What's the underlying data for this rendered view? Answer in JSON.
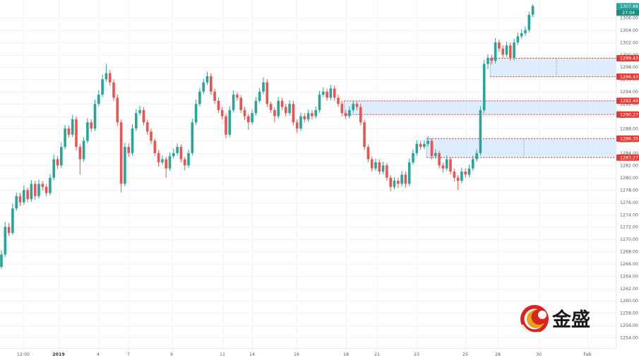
{
  "chart_data": {
    "type": "candlestick",
    "ylim": [
      1252.3,
      1308.9
    ],
    "y_ticks": [
      "1254.00",
      "1256.00",
      "1258.00",
      "1260.00",
      "1262.00",
      "1264.00",
      "1266.00",
      "1268.00",
      "1270.00",
      "1272.00",
      "1274.00",
      "1276.00",
      "1278.00",
      "1280.00",
      "1282.00",
      "1284.00",
      "1286.00",
      "1288.00",
      "1290.00",
      "1292.00",
      "1294.00",
      "1296.00",
      "1298.00",
      "1300.00",
      "1302.00",
      "1304.00",
      "1306.00"
    ],
    "x_ticks": [
      "12:00",
      "2019",
      "4",
      "7",
      "9",
      "11",
      "14",
      "16",
      "18",
      "21",
      "23",
      "25",
      "28",
      "30",
      "Feb"
    ],
    "candles": [
      [
        1265.5,
        1268.2,
        1265.2,
        1267.5
      ],
      [
        1267.5,
        1272.8,
        1267.1,
        1272.0
      ],
      [
        1272.0,
        1272.6,
        1270.5,
        1271.0
      ],
      [
        1271.0,
        1275.8,
        1270.7,
        1275.0
      ],
      [
        1275.0,
        1277.6,
        1274.6,
        1277.0
      ],
      [
        1277.0,
        1277.5,
        1275.4,
        1276.0
      ],
      [
        1276.0,
        1278.7,
        1275.6,
        1278.0
      ],
      [
        1278.0,
        1278.4,
        1276.0,
        1276.5
      ],
      [
        1276.5,
        1279.6,
        1276.1,
        1279.0
      ],
      [
        1279.0,
        1279.5,
        1276.4,
        1277.0
      ],
      [
        1277.0,
        1279.7,
        1276.6,
        1279.0
      ],
      [
        1279.0,
        1279.4,
        1277.9,
        1278.5
      ],
      [
        1278.5,
        1279.0,
        1277.0,
        1277.5
      ],
      [
        1277.5,
        1280.6,
        1277.1,
        1280.0
      ],
      [
        1280.0,
        1283.8,
        1279.6,
        1283.0
      ],
      [
        1283.0,
        1283.5,
        1281.4,
        1282.0
      ],
      [
        1282.0,
        1285.7,
        1281.6,
        1285.0
      ],
      [
        1285.0,
        1288.6,
        1284.6,
        1288.0
      ],
      [
        1288.0,
        1288.5,
        1286.5,
        1287.0
      ],
      [
        1287.0,
        1290.2,
        1286.6,
        1289.5
      ],
      [
        1289.5,
        1290.0,
        1284.4,
        1285.0
      ],
      [
        1285.0,
        1285.5,
        1280.5,
        1283.0
      ],
      [
        1283.0,
        1286.6,
        1282.6,
        1286.0
      ],
      [
        1286.0,
        1289.7,
        1285.6,
        1289.0
      ],
      [
        1289.0,
        1289.5,
        1287.4,
        1288.0
      ],
      [
        1288.0,
        1292.7,
        1287.6,
        1292.0
      ],
      [
        1292.0,
        1294.2,
        1291.6,
        1293.5
      ],
      [
        1293.5,
        1296.8,
        1293.1,
        1296.0
      ],
      [
        1296.0,
        1298.5,
        1295.6,
        1297.0
      ],
      [
        1297.0,
        1297.5,
        1295.0,
        1295.5
      ],
      [
        1295.5,
        1296.0,
        1292.5,
        1293.0
      ],
      [
        1293.0,
        1293.5,
        1288.4,
        1289.0
      ],
      [
        1289.0,
        1289.5,
        1277.6,
        1279.0
      ],
      [
        1279.0,
        1285.7,
        1278.6,
        1285.0
      ],
      [
        1285.0,
        1285.6,
        1283.4,
        1284.0
      ],
      [
        1284.0,
        1288.7,
        1283.6,
        1288.0
      ],
      [
        1288.0,
        1291.2,
        1287.6,
        1290.5
      ],
      [
        1290.5,
        1291.7,
        1290.1,
        1291.0
      ],
      [
        1291.0,
        1291.5,
        1288.5,
        1289.0
      ],
      [
        1289.0,
        1289.4,
        1287.0,
        1287.5
      ],
      [
        1287.5,
        1288.0,
        1285.5,
        1286.0
      ],
      [
        1286.0,
        1286.4,
        1283.5,
        1284.0
      ],
      [
        1284.0,
        1284.5,
        1281.8,
        1282.5
      ],
      [
        1282.5,
        1283.6,
        1282.1,
        1283.0
      ],
      [
        1283.0,
        1283.4,
        1280.0,
        1281.5
      ],
      [
        1281.5,
        1284.1,
        1281.1,
        1283.5
      ],
      [
        1283.5,
        1284.7,
        1283.1,
        1284.0
      ],
      [
        1284.0,
        1285.6,
        1283.6,
        1285.0
      ],
      [
        1285.0,
        1285.4,
        1282.5,
        1283.0
      ],
      [
        1283.0,
        1283.4,
        1281.2,
        1282.0
      ],
      [
        1282.0,
        1284.6,
        1281.6,
        1284.0
      ],
      [
        1284.0,
        1289.6,
        1283.6,
        1289.0
      ],
      [
        1289.0,
        1292.7,
        1288.6,
        1292.0
      ],
      [
        1292.0,
        1294.6,
        1291.6,
        1294.0
      ],
      [
        1294.0,
        1296.1,
        1293.6,
        1295.5
      ],
      [
        1295.5,
        1297.2,
        1295.1,
        1296.5
      ],
      [
        1296.5,
        1297.0,
        1293.5,
        1294.0
      ],
      [
        1294.0,
        1294.5,
        1292.0,
        1292.5
      ],
      [
        1292.5,
        1293.0,
        1290.5,
        1291.0
      ],
      [
        1291.0,
        1291.5,
        1289.5,
        1290.0
      ],
      [
        1290.0,
        1290.4,
        1286.4,
        1287.0
      ],
      [
        1287.0,
        1291.6,
        1286.6,
        1291.0
      ],
      [
        1291.0,
        1294.2,
        1290.6,
        1293.5
      ],
      [
        1293.5,
        1293.9,
        1292.5,
        1293.0
      ],
      [
        1293.0,
        1293.4,
        1290.5,
        1291.0
      ],
      [
        1291.0,
        1291.5,
        1289.4,
        1290.0
      ],
      [
        1290.0,
        1290.4,
        1287.8,
        1289.0
      ],
      [
        1289.0,
        1291.1,
        1288.6,
        1290.5
      ],
      [
        1290.5,
        1293.1,
        1290.1,
        1292.5
      ],
      [
        1292.5,
        1294.6,
        1292.1,
        1294.0
      ],
      [
        1294.0,
        1296.3,
        1293.6,
        1295.5
      ],
      [
        1295.5,
        1296.0,
        1291.5,
        1292.0
      ],
      [
        1292.0,
        1292.4,
        1290.5,
        1291.0
      ],
      [
        1291.0,
        1291.4,
        1289.0,
        1290.0
      ],
      [
        1290.0,
        1293.1,
        1289.6,
        1292.5
      ],
      [
        1292.5,
        1293.0,
        1291.0,
        1291.5
      ],
      [
        1291.5,
        1292.0,
        1290.0,
        1290.5
      ],
      [
        1290.5,
        1292.6,
        1290.1,
        1292.0
      ],
      [
        1292.0,
        1292.5,
        1288.5,
        1289.0
      ],
      [
        1289.0,
        1289.5,
        1287.3,
        1288.0
      ],
      [
        1288.0,
        1290.6,
        1287.6,
        1290.0
      ],
      [
        1290.0,
        1290.5,
        1289.0,
        1289.5
      ],
      [
        1289.5,
        1291.1,
        1289.1,
        1290.5
      ],
      [
        1290.5,
        1291.0,
        1289.5,
        1290.0
      ],
      [
        1290.0,
        1291.6,
        1289.6,
        1291.0
      ],
      [
        1291.0,
        1294.1,
        1290.6,
        1293.5
      ],
      [
        1293.5,
        1294.7,
        1293.1,
        1294.0
      ],
      [
        1294.0,
        1294.5,
        1292.5,
        1293.0
      ],
      [
        1293.0,
        1295.1,
        1292.6,
        1294.5
      ],
      [
        1294.5,
        1295.0,
        1292.5,
        1293.0
      ],
      [
        1293.0,
        1293.5,
        1291.5,
        1292.0
      ],
      [
        1292.0,
        1292.5,
        1290.0,
        1290.5
      ],
      [
        1290.5,
        1291.0,
        1289.5,
        1290.0
      ],
      [
        1290.0,
        1291.6,
        1289.6,
        1291.0
      ],
      [
        1291.0,
        1292.6,
        1290.6,
        1292.0
      ],
      [
        1292.0,
        1292.4,
        1291.0,
        1291.5
      ],
      [
        1291.5,
        1292.0,
        1288.5,
        1289.0
      ],
      [
        1289.0,
        1289.4,
        1284.5,
        1285.0
      ],
      [
        1285.0,
        1285.4,
        1282.5,
        1283.0
      ],
      [
        1283.0,
        1283.4,
        1281.0,
        1281.5
      ],
      [
        1281.5,
        1283.1,
        1281.1,
        1282.5
      ],
      [
        1282.5,
        1283.0,
        1280.5,
        1281.0
      ],
      [
        1281.0,
        1282.6,
        1280.6,
        1282.0
      ],
      [
        1282.0,
        1282.4,
        1279.5,
        1280.0
      ],
      [
        1280.0,
        1280.4,
        1277.8,
        1278.5
      ],
      [
        1278.5,
        1280.1,
        1278.1,
        1279.5
      ],
      [
        1279.5,
        1280.0,
        1278.3,
        1279.0
      ],
      [
        1279.0,
        1281.1,
        1278.6,
        1280.5
      ],
      [
        1280.5,
        1281.0,
        1278.4,
        1279.0
      ],
      [
        1279.0,
        1283.1,
        1278.6,
        1282.5
      ],
      [
        1282.5,
        1284.6,
        1282.1,
        1284.0
      ],
      [
        1284.0,
        1286.1,
        1283.6,
        1285.5
      ],
      [
        1285.5,
        1286.0,
        1284.5,
        1285.0
      ],
      [
        1285.0,
        1286.1,
        1284.6,
        1285.5
      ],
      [
        1285.5,
        1286.7,
        1285.1,
        1286.0
      ],
      [
        1286.0,
        1286.4,
        1283.0,
        1283.5
      ],
      [
        1283.5,
        1284.6,
        1283.1,
        1284.0
      ],
      [
        1284.0,
        1284.4,
        1281.5,
        1282.0
      ],
      [
        1282.0,
        1282.4,
        1280.8,
        1281.5
      ],
      [
        1281.5,
        1283.6,
        1281.1,
        1283.0
      ],
      [
        1283.0,
        1283.4,
        1280.5,
        1281.0
      ],
      [
        1281.0,
        1281.5,
        1279.4,
        1280.0
      ],
      [
        1280.0,
        1280.4,
        1278.0,
        1279.5
      ],
      [
        1279.5,
        1281.6,
        1279.1,
        1281.0
      ],
      [
        1281.0,
        1281.5,
        1280.0,
        1280.5
      ],
      [
        1280.5,
        1282.1,
        1280.1,
        1281.5
      ],
      [
        1281.5,
        1283.6,
        1281.1,
        1283.0
      ],
      [
        1283.0,
        1284.6,
        1282.6,
        1284.0
      ],
      [
        1284.0,
        1291.6,
        1283.6,
        1291.0
      ],
      [
        1291.0,
        1299.2,
        1290.6,
        1298.5
      ],
      [
        1298.5,
        1300.1,
        1297.6,
        1299.5
      ],
      [
        1299.5,
        1300.0,
        1298.4,
        1299.0
      ],
      [
        1299.0,
        1302.7,
        1298.6,
        1302.0
      ],
      [
        1302.0,
        1302.5,
        1300.5,
        1301.0
      ],
      [
        1301.0,
        1301.5,
        1299.5,
        1300.0
      ],
      [
        1300.0,
        1302.1,
        1299.6,
        1301.5
      ],
      [
        1301.5,
        1302.0,
        1299.0,
        1299.5
      ],
      [
        1299.5,
        1302.6,
        1299.1,
        1302.0
      ],
      [
        1302.0,
        1303.6,
        1301.6,
        1303.0
      ],
      [
        1303.0,
        1304.1,
        1302.6,
        1303.5
      ],
      [
        1303.5,
        1304.6,
        1303.1,
        1304.0
      ],
      [
        1304.0,
        1307.0,
        1303.6,
        1306.5
      ],
      [
        1306.5,
        1308.2,
        1306.1,
        1307.9
      ]
    ],
    "zones": [
      {
        "top": 1299.43,
        "bottom": 1296.43,
        "start_candle": 131
      },
      {
        "top": 1292.49,
        "bottom": 1290.27,
        "start_candle": 92
      },
      {
        "top": 1286.35,
        "bottom": 1283.27,
        "start_candle": 114
      }
    ],
    "last_price": 1307.88,
    "countdown": "27:04",
    "colors": {
      "up": "#26a69a",
      "down": "#ef5350",
      "zone_fill": "#d6e9fb",
      "zone_line": "#d32f2f",
      "tag_red": "#e53935",
      "tag_green": "#26a69a",
      "tag_green_dark": "#1e8c81",
      "grid": "#f1f3f6"
    }
  },
  "logo": {
    "text": "金盛",
    "emblem_icon": "jinsheng-logo-icon"
  }
}
